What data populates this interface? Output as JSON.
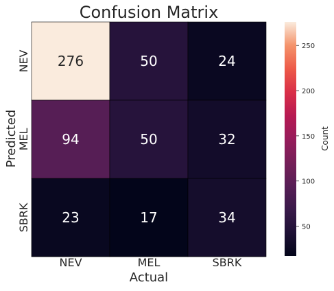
{
  "chart_data": {
    "type": "heatmap",
    "title": "Confusion Matrix",
    "xlabel": "Actual",
    "ylabel": "Predicted",
    "x_categories": [
      "NEV",
      "MEL",
      "SBRK"
    ],
    "y_categories": [
      "NEV",
      "MEL",
      "SBRK"
    ],
    "values": [
      [
        276,
        50,
        24
      ],
      [
        94,
        50,
        32
      ],
      [
        23,
        17,
        34
      ]
    ],
    "colorbar": {
      "label": "Count",
      "min": 17,
      "max": 276,
      "ticks": [
        50,
        100,
        150,
        200,
        250
      ],
      "colormap": "rocket"
    }
  }
}
